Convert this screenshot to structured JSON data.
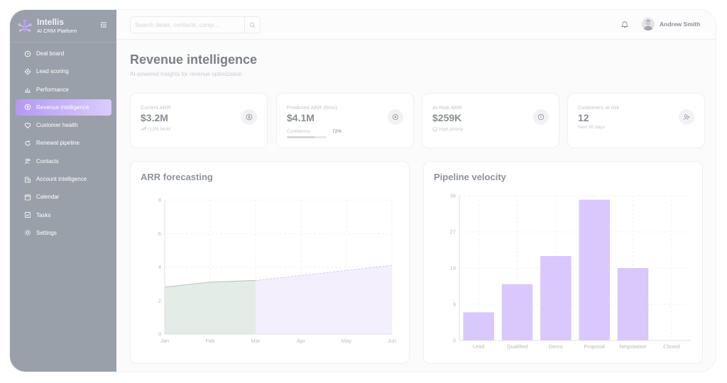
{
  "brand": {
    "name": "Intellis",
    "subtitle": "AI CRM Platform"
  },
  "sidebar": {
    "items": [
      {
        "label": "Deal board",
        "icon": "clock-icon",
        "active": false
      },
      {
        "label": "Lead scoring",
        "icon": "target-icon",
        "active": false
      },
      {
        "label": "Performance",
        "icon": "bar-chart-icon",
        "active": false
      },
      {
        "label": "Revenue intelligence",
        "icon": "dollar-icon",
        "active": true
      },
      {
        "label": "Customer health",
        "icon": "heart-icon",
        "active": false
      },
      {
        "label": "Renewal pipeline",
        "icon": "refresh-icon",
        "active": false
      },
      {
        "label": "Contacts",
        "icon": "users-icon",
        "active": false
      },
      {
        "label": "Account intelligence",
        "icon": "building-icon",
        "active": false
      },
      {
        "label": "Calendar",
        "icon": "calendar-icon",
        "active": false
      },
      {
        "label": "Tasks",
        "icon": "checkbox-icon",
        "active": false
      },
      {
        "label": "Settings",
        "icon": "gear-icon",
        "active": false
      }
    ]
  },
  "topbar": {
    "search_placeholder": "Search deals, contacts, comp...",
    "user_name": "Andrew Smith"
  },
  "page": {
    "title": "Revenue intelligence",
    "subtitle": "AI-powered insights for revenue optimization"
  },
  "kpis": [
    {
      "label": "Current ARR",
      "value": "$3.2M",
      "note": "+12% MoM",
      "icon": "dollar-icon"
    },
    {
      "label": "Predicted ARR (6mo)",
      "value": "$4.1M",
      "confidence_label": "Confidence",
      "confidence_text": "72%",
      "confidence": 0.72,
      "icon": "target-icon"
    },
    {
      "label": "At-Risk ARR",
      "value": "$259K",
      "note": "High priority",
      "icon": "alert-icon"
    },
    {
      "label": "Customers at risk",
      "value": "12",
      "note": "Next 90 days",
      "icon": "user-x-icon"
    }
  ],
  "colors": {
    "accent": "#d9c8fb",
    "actual_fill": "#e4ece8",
    "forecast_fill": "#f3effc"
  },
  "chart_data": [
    {
      "type": "area",
      "title": "ARR forecasting",
      "x": [
        "Jan",
        "Feb",
        "Mar",
        "Apr",
        "May",
        "Jun"
      ],
      "series": [
        {
          "values": [
            2.8,
            3.1,
            3.2,
            null,
            null,
            null
          ]
        },
        {
          "values": [
            null,
            null,
            3.2,
            3.5,
            3.8,
            4.1
          ]
        }
      ],
      "ylim": [
        0,
        8
      ],
      "yticks": [
        0,
        2,
        4,
        6,
        8
      ],
      "grid": true
    },
    {
      "type": "bar",
      "title": "Pipeline velocity",
      "categories": [
        "Lead",
        "Qualified",
        "Demo",
        "Proposal",
        "Negotiation",
        "Closed"
      ],
      "values": [
        7,
        14,
        21,
        35,
        18,
        0
      ],
      "ylim": [
        0,
        36
      ],
      "yticks": [
        0,
        9,
        18,
        27,
        36
      ],
      "grid": true
    }
  ]
}
